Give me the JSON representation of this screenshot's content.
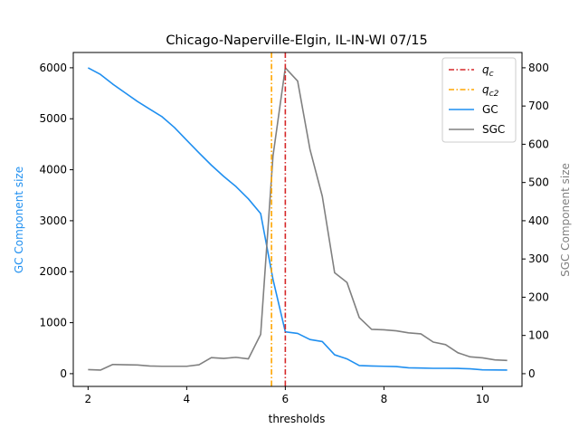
{
  "chart_data": {
    "type": "line",
    "title": "Chicago-Naperville-Elgin, IL-IN-WI 07/15",
    "xlabel": "thresholds",
    "ylabel_left": "GC Component size",
    "ylabel_right": "SGC Component size",
    "xlim": [
      1.7,
      10.8
    ],
    "ylim_left": [
      -250,
      6300
    ],
    "ylim_right": [
      -33.3,
      840
    ],
    "xticks": [
      2,
      4,
      6,
      8,
      10
    ],
    "yticks_left": [
      0,
      1000,
      2000,
      3000,
      4000,
      5000,
      6000
    ],
    "yticks_right": [
      0,
      100,
      200,
      300,
      400,
      500,
      600,
      700,
      800
    ],
    "grid": false,
    "legend_position": "top-right",
    "legend": [
      {
        "label": "q",
        "sub": "c",
        "style": "dashdot",
        "color": "#d62728"
      },
      {
        "label": "q",
        "sub": "c2",
        "style": "dashdot",
        "color": "#ffa500"
      },
      {
        "label": "GC",
        "style": "solid",
        "color": "#1f8ff0"
      },
      {
        "label": "SGC",
        "style": "solid",
        "color": "#808080"
      }
    ],
    "vlines": [
      {
        "name": "q_c",
        "x": 6.0,
        "color": "#d62728"
      },
      {
        "name": "q_c2",
        "x": 5.72,
        "color": "#ffa500"
      }
    ],
    "x": [
      2.0,
      2.25,
      2.5,
      2.75,
      3.0,
      3.25,
      3.5,
      3.75,
      4.0,
      4.25,
      4.5,
      4.75,
      5.0,
      5.25,
      5.5,
      5.75,
      6.0,
      6.25,
      6.5,
      6.75,
      7.0,
      7.25,
      7.5,
      7.75,
      8.0,
      8.25,
      8.5,
      8.75,
      9.0,
      9.25,
      9.5,
      9.75,
      10.0,
      10.25,
      10.5
    ],
    "series": [
      {
        "name": "GC",
        "axis": "left",
        "color": "#1f8ff0",
        "values": [
          6000,
          5870,
          5680,
          5510,
          5340,
          5190,
          5040,
          4830,
          4580,
          4330,
          4090,
          3870,
          3670,
          3430,
          3140,
          1850,
          820,
          790,
          670,
          630,
          370,
          290,
          160,
          150,
          145,
          140,
          115,
          110,
          105,
          105,
          103,
          95,
          75,
          72,
          70
        ]
      },
      {
        "name": "SGC",
        "axis": "left",
        "color": "#808080",
        "values": [
          80,
          70,
          180,
          175,
          170,
          150,
          145,
          145,
          145,
          175,
          315,
          300,
          320,
          290,
          770,
          4270,
          6000,
          5740,
          4400,
          3480,
          1980,
          1790,
          1100,
          870,
          860,
          840,
          800,
          780,
          620,
          570,
          410,
          330,
          310,
          270,
          260
        ]
      }
    ]
  }
}
